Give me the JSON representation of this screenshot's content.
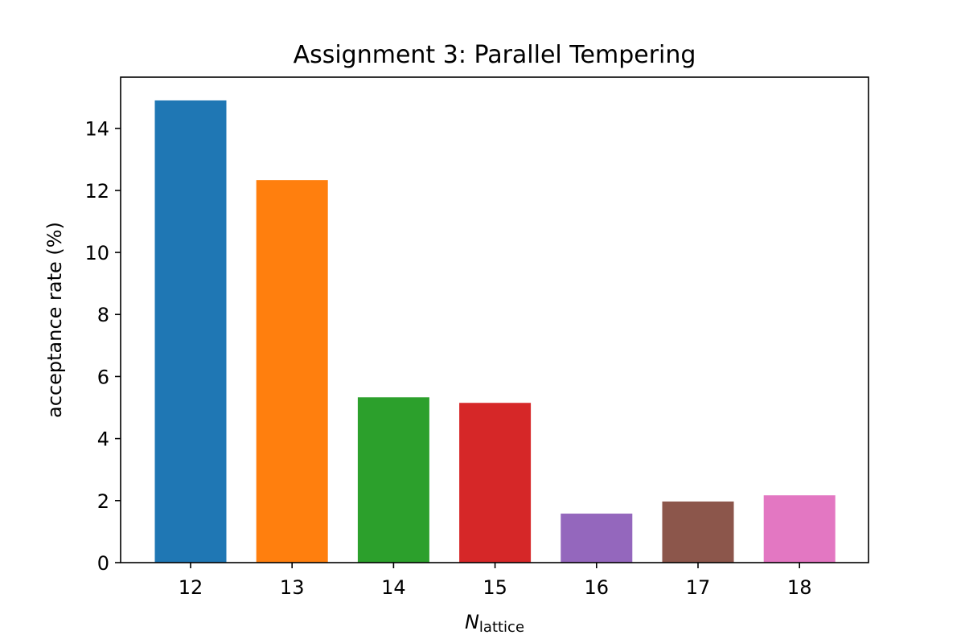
{
  "chart_data": {
    "type": "bar",
    "title": "Assignment 3: Parallel Tempering",
    "xlabel_main": "N",
    "xlabel_sub": "lattice",
    "ylabel": "acceptance rate (%)",
    "categories": [
      "12",
      "13",
      "14",
      "15",
      "16",
      "17",
      "18"
    ],
    "values": [
      14.9,
      12.33,
      5.33,
      5.15,
      1.58,
      1.97,
      2.17
    ],
    "colors": [
      "#1f77b4",
      "#ff7f0e",
      "#2ca02c",
      "#d62728",
      "#9467bd",
      "#8c564b",
      "#e377c2"
    ],
    "ylim": [
      0,
      15.65
    ],
    "yticks": [
      0,
      2,
      4,
      6,
      8,
      10,
      12,
      14
    ],
    "grid": false,
    "legend": "none"
  }
}
